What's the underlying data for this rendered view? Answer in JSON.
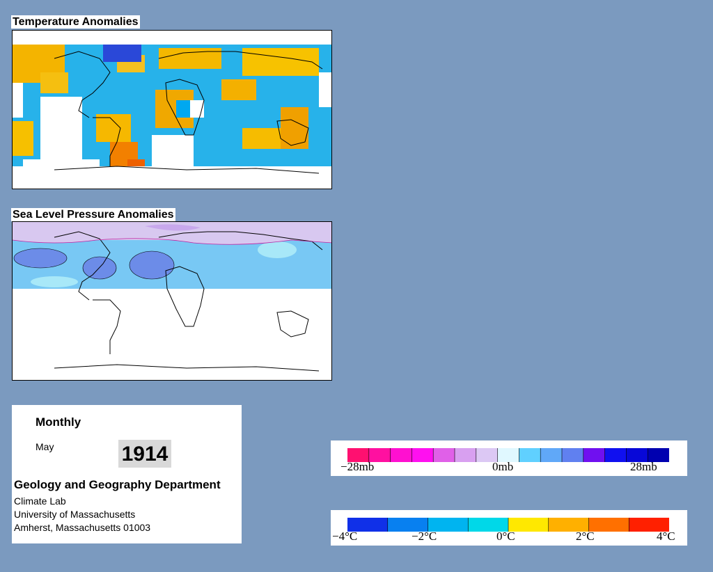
{
  "temperature_panel": {
    "title": "Temperature Anomalies"
  },
  "pressure_panel": {
    "title": "Sea Level Pressure Anomalies"
  },
  "info": {
    "period": "Monthly",
    "month": "May",
    "year": "1914",
    "department": "Geology and Geography Department",
    "lines": [
      "Climate Lab",
      "University of Massachusetts",
      "Amherst, Massachusetts 01003"
    ]
  },
  "pressure_legend": {
    "labels": [
      "−28mb",
      "0mb",
      "28mb"
    ],
    "colors": [
      "#ff1070",
      "#ff10a0",
      "#ff10d0",
      "#ff10f0",
      "#e060e8",
      "#d8a0f0",
      "#dcc8f4",
      "#e0f8ff",
      "#60d0ff",
      "#60a8f8",
      "#6080f0",
      "#7010f0",
      "#1010f0",
      "#0808d8",
      "#0000b0"
    ]
  },
  "temperature_legend": {
    "labels": [
      "−4°C",
      "−2°C",
      "0°C",
      "2°C",
      "4°C"
    ],
    "colors": [
      "#1030e8",
      "#0880f0",
      "#00b4f0",
      "#00d8e8",
      "#ffe800",
      "#ffb000",
      "#ff7000",
      "#ff2000"
    ]
  },
  "colors": {
    "background": "#7b9abf",
    "temp_cold": "#1da9e6",
    "temp_warm": "#f6b800",
    "slp_high": "#d8c8f0",
    "slp_low": "#6c8ce8",
    "slp_light": "#a8e8f8"
  }
}
